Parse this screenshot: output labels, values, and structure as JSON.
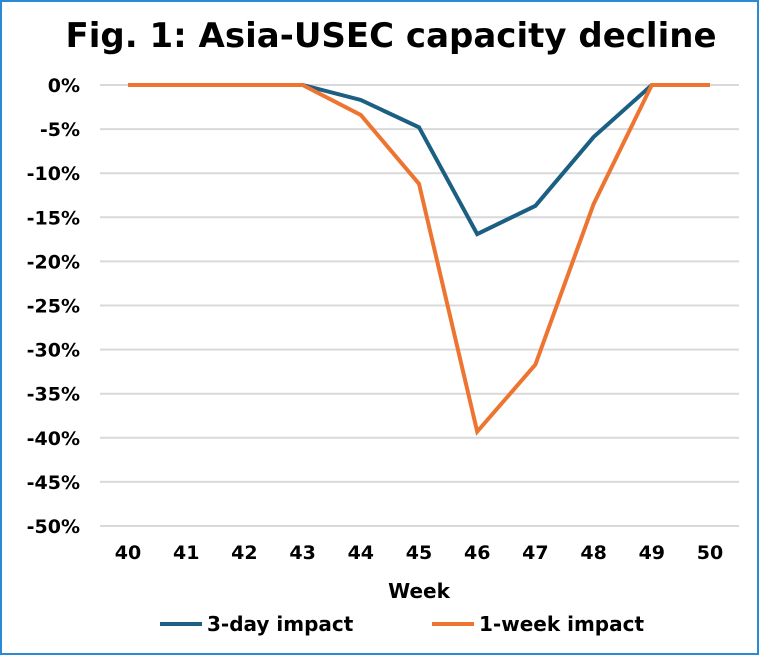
{
  "chart_data": {
    "type": "line",
    "title": "Fig. 1: Asia-USEC capacity decline",
    "xlabel": "Week",
    "ylabel": "",
    "x": [
      40,
      41,
      42,
      43,
      44,
      45,
      46,
      47,
      48,
      49,
      50
    ],
    "ylim": [
      -50,
      0
    ],
    "yticks": [
      "0%",
      "-5%",
      "-10%",
      "-15%",
      "-20%",
      "-25%",
      "-30%",
      "-35%",
      "-40%",
      "-45%",
      "-50%"
    ],
    "grid": true,
    "legend": "bottom",
    "series": [
      {
        "name": "3-day impact",
        "color": "#1b5f82",
        "values": [
          0,
          0,
          0,
          0,
          -1.7,
          -4.8,
          -16.9,
          -13.7,
          -5.9,
          0,
          0
        ]
      },
      {
        "name": "1-week impact",
        "color": "#ee7531",
        "values": [
          0,
          0,
          0,
          0,
          -3.4,
          -11.2,
          -39.3,
          -31.7,
          -13.5,
          0,
          0
        ]
      }
    ]
  }
}
